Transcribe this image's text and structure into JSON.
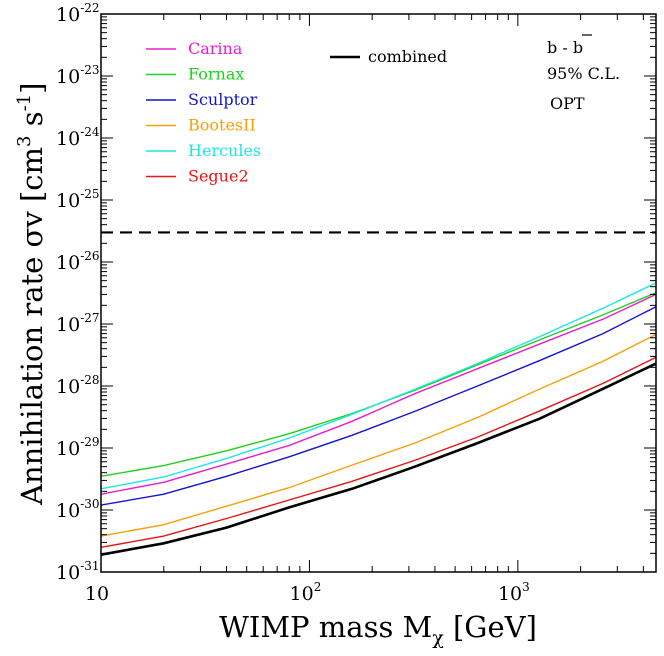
{
  "chart_data": {
    "type": "line",
    "title": "",
    "xlabel": "WIMP mass M",
    "xlabel_sub": "χ",
    "xlabel_unit": "[GeV]",
    "ylabel_prefix": "Annihilation rate",
    "ylabel_sym": "σv",
    "ylabel_unit_open": "[cm",
    "ylabel_unit_pow3": "3",
    "ylabel_unit_s": "s",
    "ylabel_unit_powm1": "-1",
    "ylabel_unit_close": "]",
    "xscale": "log",
    "yscale": "log",
    "xlim": [
      10,
      4600
    ],
    "ylim": [
      1e-31,
      1e-22
    ],
    "x_tick_base": "10",
    "x_ticks": [
      {
        "value": 10,
        "exp": ""
      },
      {
        "value": 100,
        "exp": "2"
      },
      {
        "value": 1000,
        "exp": "3"
      }
    ],
    "y_tick_base": "10",
    "y_ticks": [
      {
        "value": 1e-31,
        "exp": "-31"
      },
      {
        "value": 1e-30,
        "exp": "-30"
      },
      {
        "value": 1e-29,
        "exp": "-29"
      },
      {
        "value": 1e-28,
        "exp": "-28"
      },
      {
        "value": 1e-27,
        "exp": "-27"
      },
      {
        "value": 1e-26,
        "exp": "-26"
      },
      {
        "value": 1e-25,
        "exp": "-25"
      },
      {
        "value": 1e-24,
        "exp": "-24"
      },
      {
        "value": 1e-23,
        "exp": "-23"
      },
      {
        "value": 1e-22,
        "exp": "-22"
      }
    ],
    "x": [
      10,
      20,
      40,
      80,
      160,
      320,
      640,
      1280,
      2560,
      4600
    ],
    "series": [
      {
        "name": "Carina",
        "color": "#e81ed0",
        "values": [
          1.8e-30,
          2.8e-30,
          5.5e-30,
          1.1e-29,
          2.7e-29,
          7.5e-29,
          1.9e-28,
          4.8e-28,
          1.2e-27,
          3e-27
        ]
      },
      {
        "name": "Fornax",
        "color": "#1ed21e",
        "values": [
          3.5e-30,
          5.2e-30,
          9e-30,
          1.7e-29,
          3.6e-29,
          8.5e-29,
          2.2e-28,
          5.6e-28,
          1.4e-27,
          3.2e-27
        ]
      },
      {
        "name": "Sculptor",
        "color": "#1414d2",
        "values": [
          1.2e-30,
          1.8e-30,
          3.5e-30,
          7.2e-30,
          1.6e-29,
          3.9e-29,
          1e-28,
          2.6e-28,
          7e-28,
          1.9e-27
        ]
      },
      {
        "name": "BootesII",
        "color": "#f5a00a",
        "values": [
          3.8e-31,
          5.8e-31,
          1.15e-30,
          2.3e-30,
          5.3e-30,
          1.2e-29,
          3.1e-29,
          9e-29,
          2.5e-28,
          6.8e-28
        ]
      },
      {
        "name": "Hercules",
        "color": "#1ee6e6",
        "values": [
          2.2e-30,
          3.4e-30,
          6.8e-30,
          1.45e-29,
          3.5e-29,
          8.8e-29,
          2.3e-28,
          6.3e-28,
          1.8e-27,
          4.6e-27
        ]
      },
      {
        "name": "Segue2",
        "color": "#e61414",
        "values": [
          2.5e-31,
          3.8e-31,
          7.3e-31,
          1.45e-30,
          2.9e-30,
          6.3e-30,
          1.5e-29,
          4e-29,
          1.1e-28,
          2.9e-28
        ]
      }
    ],
    "combined": {
      "name": "combined",
      "color": "#000000",
      "values": [
        1.9e-31,
        2.9e-31,
        5.2e-31,
        1.1e-30,
        2.2e-30,
        5e-30,
        1.2e-29,
        3e-29,
        9e-29,
        2.3e-28
      ]
    },
    "reference_line": {
      "value": 3e-26,
      "style": "dashed"
    },
    "legend_position": "top-left",
    "annotations": {
      "channel_b": "b - ",
      "channel_bbar": "b",
      "cl": "95% C.L.",
      "profile": "OPT"
    },
    "grid": false
  }
}
